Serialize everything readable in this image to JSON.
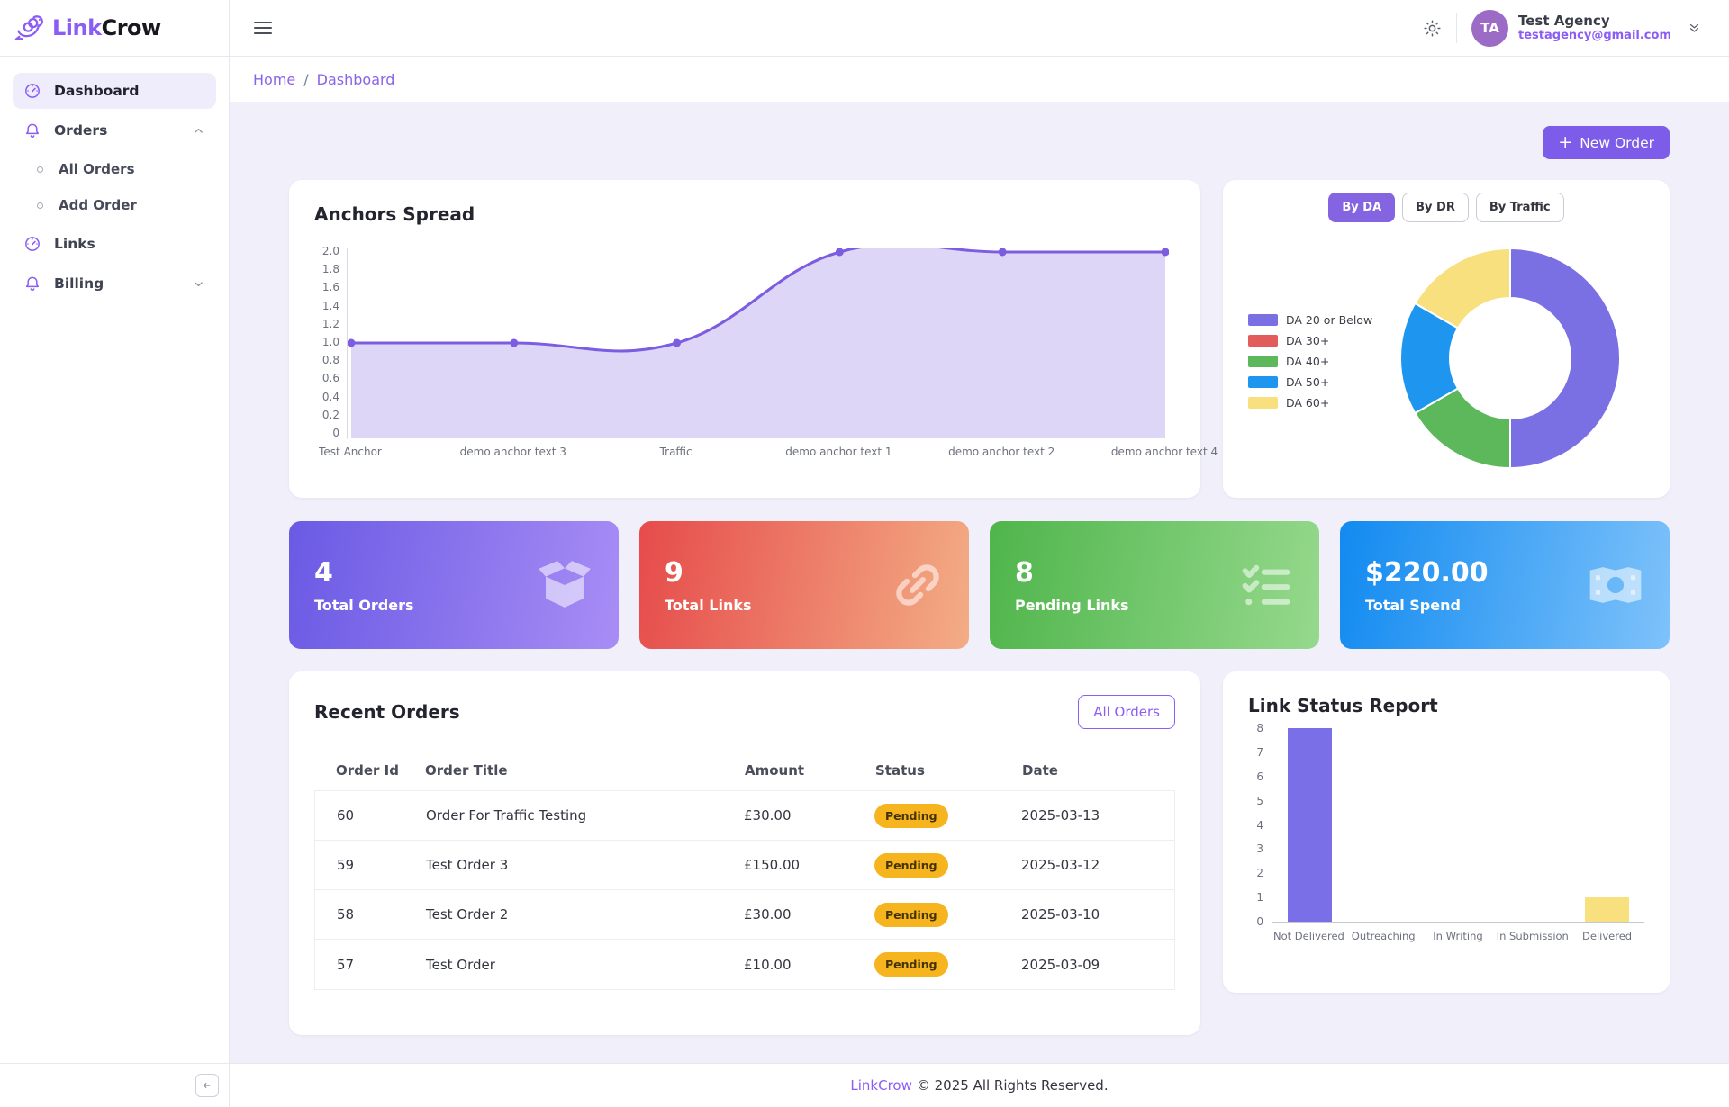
{
  "brand": {
    "logo_part1": "Link",
    "logo_part2": "Crow"
  },
  "sidebar": {
    "dashboard": "Dashboard",
    "orders": "Orders",
    "all_orders": "All Orders",
    "add_order": "Add Order",
    "links": "Links",
    "billing": "Billing"
  },
  "topbar": {
    "user_name": "Test Agency",
    "user_email": "testagency@gmail.com",
    "avatar_initials": "TA"
  },
  "breadcrumb": {
    "home": "Home",
    "separator": "/",
    "current": "Dashboard"
  },
  "actions": {
    "plus": "+",
    "new_order": "New Order",
    "all_orders": "All Orders"
  },
  "stats": [
    {
      "value": "4",
      "label": "Total Orders",
      "icon": "box-icon",
      "gradient": [
        "#6a5ae4",
        "#a88df5"
      ]
    },
    {
      "value": "9",
      "label": "Total Links",
      "icon": "link-icon",
      "gradient": [
        "#e64b4b",
        "#f3ad85"
      ]
    },
    {
      "value": "8",
      "label": "Pending Links",
      "icon": "checklist-icon",
      "gradient": [
        "#4fb54b",
        "#96d98d"
      ]
    },
    {
      "value": "$220.00",
      "label": "Total Spend",
      "icon": "banknote-icon",
      "gradient": [
        "#118af0",
        "#7ec2fa"
      ]
    }
  ],
  "recent_orders": {
    "title": "Recent Orders",
    "headers": [
      "Order Id",
      "Order Title",
      "Amount",
      "Status",
      "Date"
    ],
    "rows": [
      {
        "id": "60",
        "title": "Order For Traffic Testing",
        "amount": "£30.00",
        "status": "Pending",
        "date": "2025-03-13"
      },
      {
        "id": "59",
        "title": "Test Order 3",
        "amount": "£150.00",
        "status": "Pending",
        "date": "2025-03-12"
      },
      {
        "id": "58",
        "title": "Test Order 2",
        "amount": "£30.00",
        "status": "Pending",
        "date": "2025-03-10"
      },
      {
        "id": "57",
        "title": "Test Order",
        "amount": "£10.00",
        "status": "Pending",
        "date": "2025-03-09"
      }
    ]
  },
  "footer": {
    "brand": "LinkCrow",
    "text": "© 2025 All Rights Reserved."
  },
  "colors": {
    "accent_purple": "#7c5ce8",
    "link_purple": "#8b5cf6",
    "content_bg": "#f0effa",
    "pending_badge_bg": "#f6b51e",
    "avatar_bg": "#9c6bc6"
  },
  "icon_names": [
    "crow-logo-icon",
    "hamburger-menu-icon",
    "sun-icon",
    "double-chevron-down-icon",
    "gauge-icon",
    "bell-icon",
    "chevron-up-icon",
    "chevron-down-icon",
    "circle-bullet-icon",
    "box-icon",
    "link-icon",
    "checklist-icon",
    "banknote-icon",
    "collapse-arrow-icon",
    "plus-icon"
  ],
  "chart_data": [
    {
      "type": "area",
      "title": "Anchors Spread",
      "x": [
        "Test Anchor",
        "demo anchor text 3",
        "Traffic",
        "demo anchor text 1",
        "demo anchor text 2",
        "demo anchor text 4"
      ],
      "values": [
        1,
        1,
        1,
        2,
        2,
        2
      ],
      "ylim": [
        0,
        2
      ],
      "yticks": [
        "2.0",
        "1.8",
        "1.6",
        "1.4",
        "1.2",
        "1.0",
        "0.8",
        "0.6",
        "0.4",
        "0.2",
        "0"
      ],
      "line_color": "#7c5ce0",
      "fill_color": "rgba(124,92,224,0.25)",
      "grid": false,
      "legend": "none"
    },
    {
      "type": "pie",
      "subtype": "donut",
      "tabs": [
        "By DA",
        "By DR",
        "By Traffic"
      ],
      "active_tab": "By DA",
      "labels": [
        "DA 20 or Below",
        "DA 30+",
        "DA 40+",
        "DA 50+",
        "DA 60+"
      ],
      "values": [
        3,
        0,
        1,
        1,
        1
      ],
      "colors": [
        "#7b6fe4",
        "#e25c5c",
        "#5cb85a",
        "#1e96f0",
        "#f8e07e"
      ],
      "donut_hole": 0.55,
      "legend_position": "left"
    },
    {
      "type": "bar",
      "title": "Link Status Report",
      "categories": [
        "Not Delivered",
        "Outreaching",
        "In Writing",
        "In Submission",
        "Delivered"
      ],
      "values": [
        8,
        0,
        0,
        0,
        1
      ],
      "bar_colors": [
        "#7b6fe8",
        "#7b6fe8",
        "#7b6fe8",
        "#7b6fe8",
        "#f8e07e"
      ],
      "ylim": [
        0,
        8
      ],
      "yticks": [
        "8",
        "7",
        "6",
        "5",
        "4",
        "3",
        "2",
        "1",
        "0"
      ],
      "grid": false
    }
  ]
}
